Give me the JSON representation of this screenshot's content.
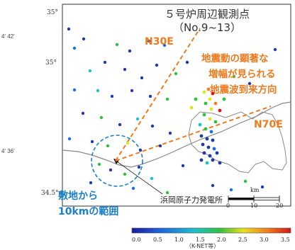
{
  "map": {
    "side_labels": [
      "4' 42'",
      "4' 36'"
    ],
    "lat_labels": [
      "35°",
      "35°",
      "34.5°"
    ],
    "title_lines": [
      "５号炉周辺観測点",
      "（No.9~13）"
    ],
    "direction_labels": {
      "n30e": "N30E",
      "n70e": "N70E"
    },
    "annotation": [
      "地震動の顕著な",
      "増幅が見られる",
      "地震波到来方向"
    ],
    "site_label": [
      "敷地から",
      "10kmの範囲"
    ],
    "plant_label": "浜岡原子力発電所",
    "scale": {
      "unit": "km",
      "ticks": [
        "0",
        "10",
        "20"
      ]
    },
    "colorbar": {
      "ticks": [
        "0.0",
        "0.5",
        "1.0",
        "1.5",
        "2.0",
        "2.5",
        "3.0",
        "3.5"
      ],
      "caption": "（K-NET等）"
    },
    "colors": {
      "accent_orange": "#f07a1d",
      "accent_blue": "#1a7fc7",
      "dark_blue": "#1e3aa8"
    }
  }
}
